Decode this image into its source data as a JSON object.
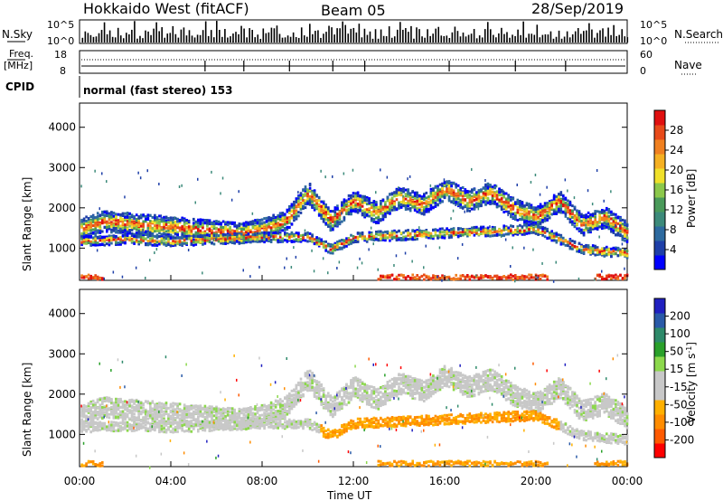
{
  "header": {
    "station": "Hokkaido West (fitACF)",
    "beam": "Beam 05",
    "date": "28/Sep/2019"
  },
  "strip": {
    "nsky_label": "N.Sky",
    "nsky_top": "10^5",
    "nsky_bottom": "10^0",
    "nsearch_label": "N.Search",
    "nsearch_top": "10^5",
    "nsearch_bottom": "10^0",
    "freq_label": "Freq.",
    "freq_unit": "[MHz]",
    "freq_top": "18",
    "freq_bottom": "8",
    "nave_label": "Nave",
    "nave_top": "60",
    "nave_bottom": "0",
    "cpid_label": "CPID",
    "cpid_text": "normal (fast stereo) 153"
  },
  "colors": {
    "power": [
      "#0000ff",
      "#1e3fa8",
      "#2d6a9f",
      "#3c8a7a",
      "#4a9a5a",
      "#8cc84b",
      "#f0e02a",
      "#f5b022",
      "#f08020",
      "#e84a1a",
      "#e01010"
    ],
    "velocity": [
      "#ff0000",
      "#ff5a00",
      "#ff8c00",
      "#ffb000",
      "#c8c8c8",
      "#c8c8c8",
      "#8cd84c",
      "#2aa02a",
      "#2e8a6a",
      "#2a5aa8",
      "#2020c0"
    ]
  },
  "chart_data": [
    {
      "type": "heatmap",
      "name_panel": "power",
      "ylabel": "Slant Range [km]",
      "yticks": [
        "1000",
        "2000",
        "3000",
        "4000"
      ],
      "ylim": [
        200,
        4600
      ],
      "xlim": [
        0,
        24
      ],
      "colorbar_label": "Power [dB]",
      "colorbar_ticks": [
        "4",
        "8",
        "12",
        "16",
        "20",
        "24",
        "28"
      ],
      "bands": [
        {
          "t": [
            0,
            1,
            2,
            3,
            4,
            5,
            6,
            7,
            8,
            9,
            10,
            11,
            12,
            13,
            14,
            15,
            16,
            17,
            18,
            19,
            20,
            21,
            22,
            23,
            24
          ],
          "r": [
            1500,
            1700,
            1650,
            1600,
            1550,
            1500,
            1450,
            1400,
            1500,
            1700,
            2400,
            1700,
            2200,
            1900,
            2300,
            2100,
            2500,
            2200,
            2400,
            2000,
            1800,
            2200,
            1600,
            1800,
            1400
          ]
        },
        {
          "t": [
            0,
            2,
            4,
            6,
            8,
            10,
            11,
            12,
            14,
            16,
            18,
            20,
            22,
            24
          ],
          "r": [
            1200,
            1250,
            1200,
            1250,
            1300,
            1300,
            1000,
            1300,
            1350,
            1400,
            1450,
            1500,
            1000,
            900
          ]
        }
      ]
    },
    {
      "type": "heatmap",
      "name_panel": "velocity",
      "ylabel": "Slant Range [km]",
      "yticks": [
        "1000",
        "2000",
        "3000",
        "4000"
      ],
      "ylim": [
        200,
        4600
      ],
      "xlim": [
        0,
        24
      ],
      "xticks": [
        "00:00",
        "04:00",
        "08:00",
        "12:00",
        "16:00",
        "20:00",
        "00:00"
      ],
      "xlabel": "Time UT",
      "colorbar_label": "Velocity [m s^-1]",
      "colorbar_ticks": [
        "-200",
        "-100",
        "-50",
        "-15",
        "15",
        "50",
        "100",
        "200"
      ]
    }
  ]
}
